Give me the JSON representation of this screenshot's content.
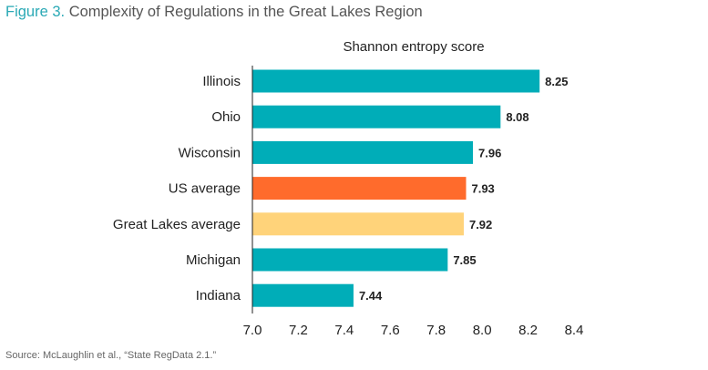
{
  "figure_label": "Figure 3.",
  "title": "Complexity of Regulations in the Great Lakes Region",
  "source": "Source: McLaughlin et al., “State RegData 2.1.”",
  "chart_data": {
    "type": "bar",
    "orientation": "horizontal",
    "xlabel": "Shannon entropy score",
    "ylabel": "",
    "xlim": [
      7.0,
      8.4
    ],
    "xticks": [
      7.0,
      7.2,
      7.4,
      7.6,
      7.8,
      8.0,
      8.2,
      8.4
    ],
    "xtick_labels": [
      "7.0",
      "7.2",
      "7.4",
      "7.6",
      "7.8",
      "8.0",
      "8.2",
      "8.4"
    ],
    "categories": [
      "Illinois",
      "Ohio",
      "Wisconsin",
      "US average",
      "Great Lakes average",
      "Michigan",
      "Indiana"
    ],
    "values": [
      8.25,
      8.08,
      7.96,
      7.93,
      7.92,
      7.85,
      7.44
    ],
    "value_labels": [
      "8.25",
      "8.08",
      "7.96",
      "7.93",
      "7.92",
      "7.85",
      "7.44"
    ],
    "colors": [
      "#00adb8",
      "#00adb8",
      "#00adb8",
      "#ff6b2c",
      "#ffd37a",
      "#00adb8",
      "#00adb8"
    ],
    "grid": false,
    "legend": "none"
  }
}
